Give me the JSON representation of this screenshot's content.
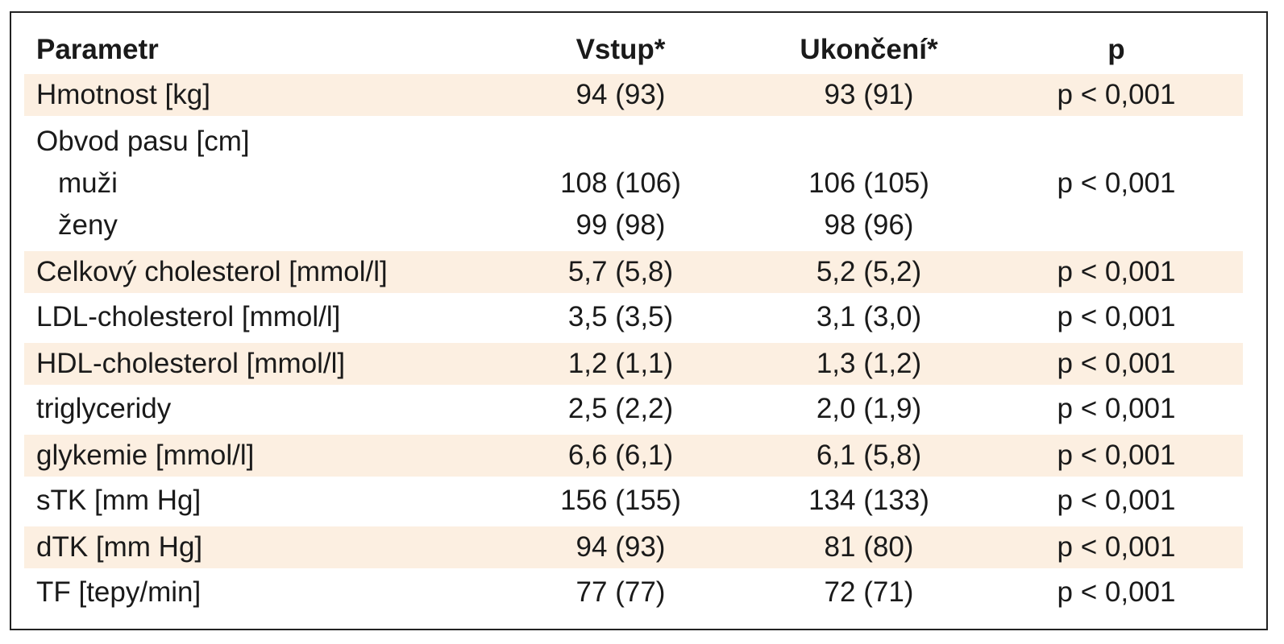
{
  "table": {
    "header": [
      "Parametr",
      "Vstup*",
      "Ukončení*",
      "p"
    ],
    "rows": [
      {
        "label": "Hmotnost [kg]",
        "vstup": "94 (93)",
        "ukonceni": "93 (91)",
        "p": "p < 0,001",
        "shaded": true
      },
      {
        "label": "Obvod pasu [cm]"
      },
      {
        "label": "muži",
        "vstup": "108 (106)",
        "ukonceni": "106 (105)",
        "p": "p < 0,001",
        "indent": true
      },
      {
        "label": "ženy",
        "vstup": "99 (98)",
        "ukonceni": "98 (96)",
        "indent": true
      },
      {
        "label": "Celkový cholesterol [mmol/l]",
        "vstup": "5,7 (5,8)",
        "ukonceni": "5,2 (5,2)",
        "p": "p < 0,001",
        "shaded": true
      },
      {
        "label": "LDL-cholesterol [mmol/l]",
        "vstup": "3,5 (3,5)",
        "ukonceni": "3,1 (3,0)",
        "p": "p < 0,001"
      },
      {
        "label": "HDL-cholesterol [mmol/l]",
        "vstup": "1,2 (1,1)",
        "ukonceni": "1,3 (1,2)",
        "p": "p < 0,001",
        "shaded": true
      },
      {
        "label": "triglyceridy",
        "vstup": "2,5 (2,2)",
        "ukonceni": "2,0 (1,9)",
        "p": "p < 0,001"
      },
      {
        "label": "glykemie [mmol/l]",
        "vstup": "6,6 (6,1)",
        "ukonceni": "6,1 (5,8)",
        "p": "p < 0,001",
        "shaded": true
      },
      {
        "label": "sTK [mm Hg]",
        "vstup": "156 (155)",
        "ukonceni": "134 (133)",
        "p": "p < 0,001"
      },
      {
        "label": "dTK [mm Hg]",
        "vstup": "94 (93)",
        "ukonceni": "81 (80)",
        "p": "p < 0,001",
        "shaded": true
      },
      {
        "label": "TF [tepy/min]",
        "vstup": "77 (77)",
        "ukonceni": "72 (71)",
        "p": "p < 0,001"
      }
    ]
  }
}
